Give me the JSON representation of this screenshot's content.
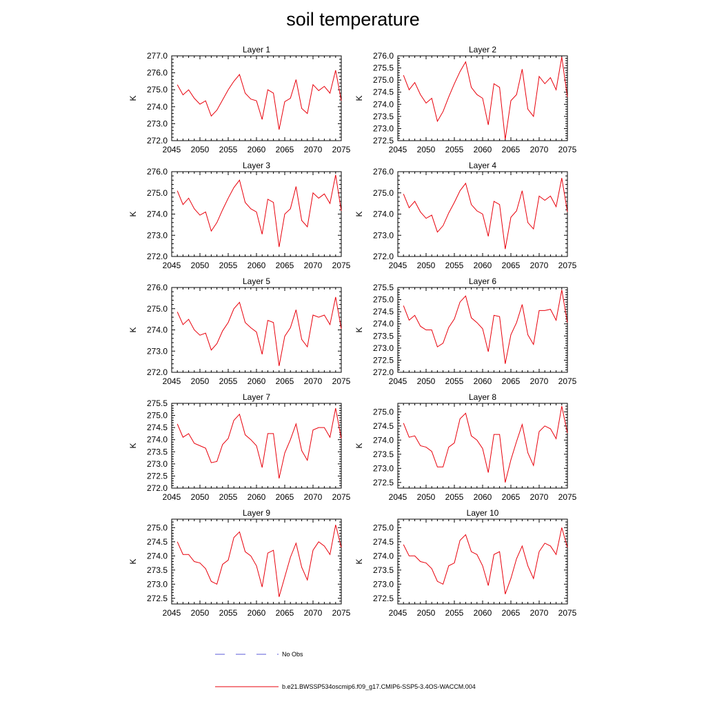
{
  "title": "soil temperature",
  "x": [
    2046,
    2047,
    2048,
    2049,
    2050,
    2051,
    2052,
    2053,
    2054,
    2055,
    2056,
    2057,
    2058,
    2059,
    2060,
    2061,
    2062,
    2063,
    2064,
    2065,
    2066,
    2067,
    2068,
    2069,
    2070,
    2071,
    2072,
    2073,
    2074,
    2075
  ],
  "legend": {
    "obs_label": "No Obs",
    "model_label": "b.e21.BWSSP534oscmip6.f09_g17.CMIP6-SSP5-3.4OS-WACCM.004",
    "obs_color": "#5a5ad8",
    "model_color": "#e8000b"
  },
  "chart_data": [
    {
      "type": "line",
      "title": "Layer 1",
      "ylabel": "K",
      "xlim": [
        2045,
        2075
      ],
      "ylim": [
        272.0,
        277.0
      ],
      "xticks": [
        "2045",
        "2050",
        "2055",
        "2060",
        "2065",
        "2070",
        "2075"
      ],
      "yticks": [
        "272.0",
        "273.0",
        "274.0",
        "275.0",
        "276.0",
        "277.0"
      ],
      "series": [
        {
          "values": [
            275.3,
            274.7,
            275.0,
            274.5,
            274.15,
            274.35,
            273.45,
            273.8,
            274.4,
            275.0,
            275.5,
            275.9,
            274.8,
            274.45,
            274.35,
            273.25,
            275.0,
            274.8,
            272.65,
            274.3,
            274.5,
            275.6,
            273.9,
            273.6,
            275.3,
            274.95,
            275.2,
            274.8,
            276.15,
            274.35
          ]
        }
      ]
    },
    {
      "type": "line",
      "title": "Layer 2",
      "ylabel": "K",
      "xlim": [
        2045,
        2075
      ],
      "ylim": [
        272.5,
        276.0
      ],
      "xticks": [
        "2045",
        "2050",
        "2055",
        "2060",
        "2065",
        "2070",
        "2075"
      ],
      "yticks": [
        "272.5",
        "273.0",
        "273.5",
        "274.0",
        "274.5",
        "275.0",
        "275.5",
        "276.0"
      ],
      "series": [
        {
          "values": [
            275.2,
            274.6,
            274.9,
            274.4,
            274.05,
            274.25,
            273.3,
            273.7,
            274.3,
            274.85,
            275.35,
            275.75,
            274.7,
            274.4,
            274.25,
            273.15,
            274.85,
            274.7,
            272.55,
            274.15,
            274.4,
            275.45,
            273.8,
            273.5,
            275.15,
            274.85,
            275.1,
            274.6,
            275.95,
            274.3
          ]
        }
      ]
    },
    {
      "type": "line",
      "title": "Layer 3",
      "ylabel": "K",
      "xlim": [
        2045,
        2075
      ],
      "ylim": [
        272.0,
        276.0
      ],
      "xticks": [
        "2045",
        "2050",
        "2055",
        "2060",
        "2065",
        "2070",
        "2075"
      ],
      "yticks": [
        "272.0",
        "273.0",
        "274.0",
        "275.0",
        "276.0"
      ],
      "series": [
        {
          "values": [
            275.1,
            274.45,
            274.75,
            274.25,
            273.95,
            274.1,
            273.2,
            273.6,
            274.2,
            274.75,
            275.25,
            275.6,
            274.55,
            274.25,
            274.1,
            273.05,
            274.7,
            274.55,
            272.45,
            274.0,
            274.25,
            275.3,
            273.7,
            273.4,
            275.0,
            274.75,
            274.95,
            274.5,
            275.85,
            274.15
          ]
        }
      ]
    },
    {
      "type": "line",
      "title": "Layer 4",
      "ylabel": "K",
      "xlim": [
        2045,
        2075
      ],
      "ylim": [
        272.0,
        276.0
      ],
      "xticks": [
        "2045",
        "2050",
        "2055",
        "2060",
        "2065",
        "2070",
        "2075"
      ],
      "yticks": [
        "272.0",
        "273.0",
        "274.0",
        "275.0",
        "276.0"
      ],
      "series": [
        {
          "values": [
            274.95,
            274.3,
            274.6,
            274.1,
            273.8,
            273.95,
            273.15,
            273.45,
            274.05,
            274.55,
            275.1,
            275.45,
            274.45,
            274.15,
            274.0,
            272.95,
            274.6,
            274.45,
            272.35,
            273.85,
            274.15,
            275.1,
            273.6,
            273.3,
            274.85,
            274.65,
            274.85,
            274.35,
            275.7,
            274.1
          ]
        }
      ]
    },
    {
      "type": "line",
      "title": "Layer 5",
      "ylabel": "K",
      "xlim": [
        2045,
        2075
      ],
      "ylim": [
        272.0,
        276.0
      ],
      "xticks": [
        "2045",
        "2050",
        "2055",
        "2060",
        "2065",
        "2070",
        "2075"
      ],
      "yticks": [
        "272.0",
        "273.0",
        "274.0",
        "275.0",
        "276.0"
      ],
      "series": [
        {
          "values": [
            274.85,
            274.25,
            274.5,
            274.0,
            273.75,
            273.85,
            273.05,
            273.35,
            273.95,
            274.35,
            275.0,
            275.3,
            274.35,
            274.1,
            273.9,
            272.85,
            274.45,
            274.35,
            272.3,
            273.7,
            274.1,
            274.95,
            273.55,
            273.2,
            274.7,
            274.6,
            274.7,
            274.25,
            275.55,
            274.05
          ]
        }
      ]
    },
    {
      "type": "line",
      "title": "Layer 6",
      "ylabel": "K",
      "xlim": [
        2045,
        2075
      ],
      "ylim": [
        272.0,
        275.5
      ],
      "xticks": [
        "2045",
        "2050",
        "2055",
        "2060",
        "2065",
        "2070",
        "2075"
      ],
      "yticks": [
        "272.0",
        "272.5",
        "273.0",
        "273.5",
        "274.0",
        "274.5",
        "275.0",
        "275.5"
      ],
      "series": [
        {
          "values": [
            274.75,
            274.15,
            274.35,
            273.9,
            273.75,
            273.75,
            273.05,
            273.2,
            273.85,
            274.2,
            274.9,
            275.15,
            274.25,
            274.05,
            273.8,
            272.85,
            274.35,
            274.3,
            272.35,
            273.55,
            274.05,
            274.8,
            273.55,
            273.15,
            274.55,
            274.55,
            274.6,
            274.15,
            275.4,
            274.05
          ]
        }
      ]
    },
    {
      "type": "line",
      "title": "Layer 7",
      "ylabel": "K",
      "xlim": [
        2045,
        2075
      ],
      "ylim": [
        272.0,
        275.5
      ],
      "xticks": [
        "2045",
        "2050",
        "2055",
        "2060",
        "2065",
        "2070",
        "2075"
      ],
      "yticks": [
        "272.0",
        "272.5",
        "273.0",
        "273.5",
        "274.0",
        "274.5",
        "275.0",
        "275.5"
      ],
      "series": [
        {
          "values": [
            274.65,
            274.1,
            274.25,
            273.85,
            273.75,
            273.65,
            273.05,
            273.1,
            273.8,
            274.05,
            274.8,
            275.05,
            274.2,
            274.0,
            273.75,
            272.85,
            274.25,
            274.25,
            272.4,
            273.45,
            274.0,
            274.65,
            273.55,
            273.15,
            274.4,
            274.5,
            274.5,
            274.1,
            275.3,
            274.05
          ]
        }
      ]
    },
    {
      "type": "line",
      "title": "Layer 8",
      "ylabel": "K",
      "xlim": [
        2045,
        2075
      ],
      "ylim": [
        272.3,
        275.3
      ],
      "xticks": [
        "2045",
        "2050",
        "2055",
        "2060",
        "2065",
        "2070",
        "2075"
      ],
      "yticks": [
        "272.5",
        "273.0",
        "273.5",
        "274.0",
        "274.5",
        "275.0"
      ],
      "series": [
        {
          "values": [
            274.6,
            274.1,
            274.15,
            273.8,
            273.75,
            273.6,
            273.05,
            273.05,
            273.75,
            273.9,
            274.75,
            274.95,
            274.15,
            274.0,
            273.7,
            272.85,
            274.2,
            274.2,
            272.5,
            273.3,
            273.95,
            274.55,
            273.55,
            273.1,
            274.3,
            274.5,
            274.4,
            274.05,
            275.2,
            274.25
          ]
        }
      ]
    },
    {
      "type": "line",
      "title": "Layer 9",
      "ylabel": "K",
      "xlim": [
        2045,
        2075
      ],
      "ylim": [
        272.3,
        275.3
      ],
      "xticks": [
        "2045",
        "2050",
        "2055",
        "2060",
        "2065",
        "2070",
        "2075"
      ],
      "yticks": [
        "272.5",
        "273.0",
        "273.5",
        "274.0",
        "274.5",
        "275.0"
      ],
      "series": [
        {
          "values": [
            274.5,
            274.05,
            274.05,
            273.8,
            273.75,
            273.55,
            273.1,
            273.0,
            273.7,
            273.85,
            274.65,
            274.85,
            274.15,
            274.0,
            273.65,
            272.9,
            274.1,
            274.2,
            272.55,
            273.25,
            273.95,
            274.45,
            273.6,
            273.15,
            274.2,
            274.5,
            274.35,
            274.05,
            275.1,
            274.3
          ]
        }
      ]
    },
    {
      "type": "line",
      "title": "Layer 10",
      "ylabel": "K",
      "xlim": [
        2045,
        2075
      ],
      "ylim": [
        272.3,
        275.3
      ],
      "xticks": [
        "2045",
        "2050",
        "2055",
        "2060",
        "2065",
        "2070",
        "2075"
      ],
      "yticks": [
        "272.5",
        "273.0",
        "273.5",
        "274.0",
        "274.5",
        "275.0"
      ],
      "series": [
        {
          "values": [
            274.4,
            274.0,
            274.0,
            273.8,
            273.75,
            273.55,
            273.1,
            273.0,
            273.65,
            273.75,
            274.55,
            274.75,
            274.15,
            274.05,
            273.65,
            272.95,
            274.05,
            274.15,
            272.65,
            273.2,
            273.9,
            274.35,
            273.65,
            273.2,
            274.15,
            274.45,
            274.35,
            274.05,
            275.0,
            274.3
          ]
        }
      ]
    }
  ]
}
